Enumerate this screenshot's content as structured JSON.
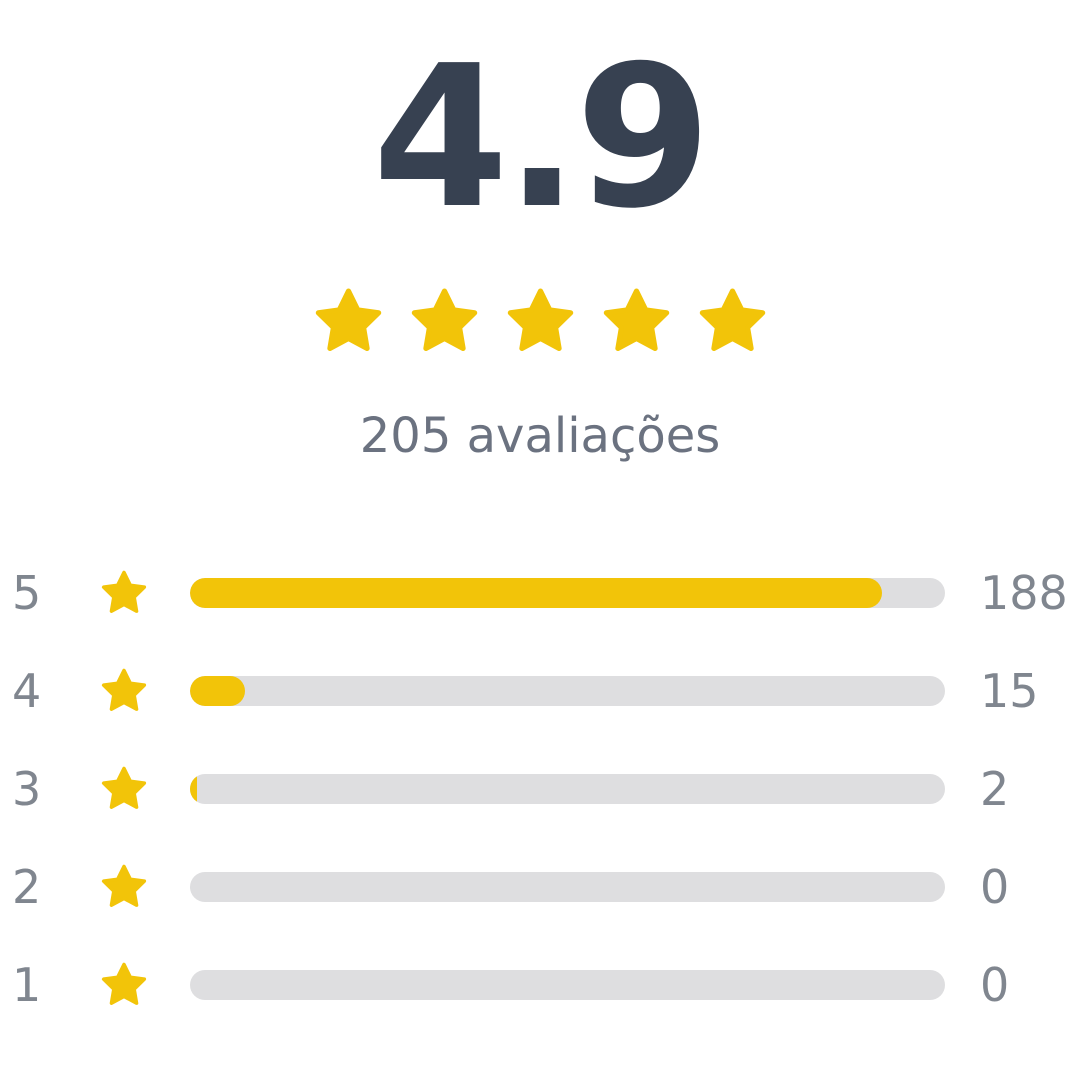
{
  "summary": {
    "average": "4.9",
    "stars_filled": 5,
    "review_count_label": "205 avaliações",
    "total": 205
  },
  "colors": {
    "star": "#f2c409",
    "track": "#dedee0",
    "text_dark": "#374151",
    "text_muted": "#6b7280"
  },
  "breakdown": [
    {
      "stars": "5",
      "count": "188",
      "value": 188
    },
    {
      "stars": "4",
      "count": "15",
      "value": 15
    },
    {
      "stars": "3",
      "count": "2",
      "value": 2
    },
    {
      "stars": "2",
      "count": "0",
      "value": 0
    },
    {
      "stars": "1",
      "count": "0",
      "value": 0
    }
  ]
}
